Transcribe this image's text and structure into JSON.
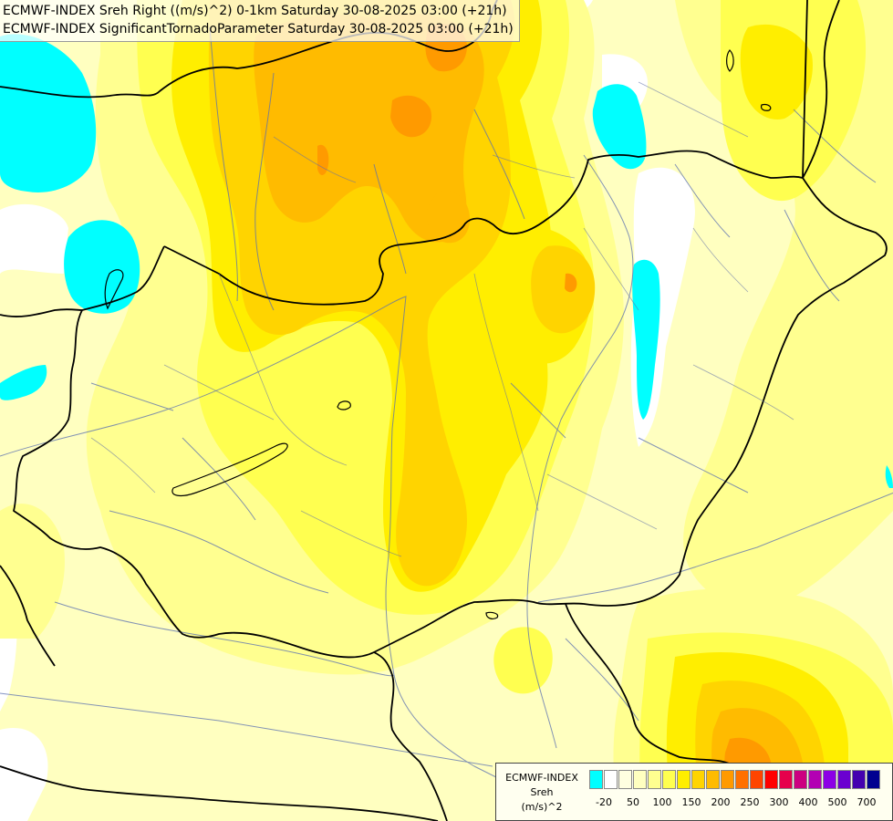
{
  "titles": {
    "line1": "ECMWF-INDEX Sreh Right ((m/s)^2) 0-1km Saturday 30-08-2025 03:00 (+21h)",
    "line2": "ECMWF-INDEX SignificantTornadoParameter Saturday 30-08-2025 03:00 (+21h)"
  },
  "legend": {
    "title_line1": "ECMWF-INDEX",
    "title_line2": "Sreh",
    "title_line3": "(m/s)^2",
    "swatch_colors": [
      "#00ffff",
      "#ffffff",
      "#ffffe0",
      "#ffffc0",
      "#ffff90",
      "#ffff50",
      "#ffee00",
      "#ffd400",
      "#ffbb00",
      "#ff9a00",
      "#ff7000",
      "#ff4500",
      "#ff0000",
      "#e6004c",
      "#cc0080",
      "#b300b3",
      "#8c00e6",
      "#6a00d0",
      "#4400b0",
      "#000090"
    ],
    "ticks": [
      "-20",
      "50",
      "100",
      "150",
      "200",
      "250",
      "300",
      "400",
      "500",
      "700"
    ]
  },
  "field_colors": {
    "pale": "#ffffc0",
    "light": "#ffff90",
    "yellow": "#ffff50",
    "gold": "#ffee00",
    "amber": "#ffd400",
    "orange": "#ffbb00",
    "deep_orange": "#ff9a00",
    "cyan": "#00ffff",
    "white": "#ffffff"
  }
}
